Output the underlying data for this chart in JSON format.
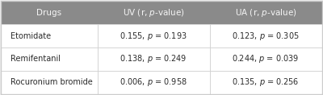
{
  "header": [
    "Drugs",
    "UV (r, p-value)",
    "UA (r, p-value)"
  ],
  "rows": [
    [
      "Etomidate",
      "0.155, p = 0.193",
      "0.123, p = 0.305"
    ],
    [
      "Remifentanil",
      "0.138, p = 0.249",
      "0.244, p = 0.039"
    ],
    [
      "Rocuronium bromide",
      "0.006, p = 0.958",
      "0.135, p = 0.256"
    ]
  ],
  "header_bg": "#8a8a8a",
  "header_text_color": "#f5f5f5",
  "row_bg": "#ffffff",
  "row_text_color": "#2a2a2a",
  "border_color": "#cccccc",
  "table_bg": "#f0f0f0",
  "italic_word": "p",
  "fig_bg": "#f0f0f0"
}
